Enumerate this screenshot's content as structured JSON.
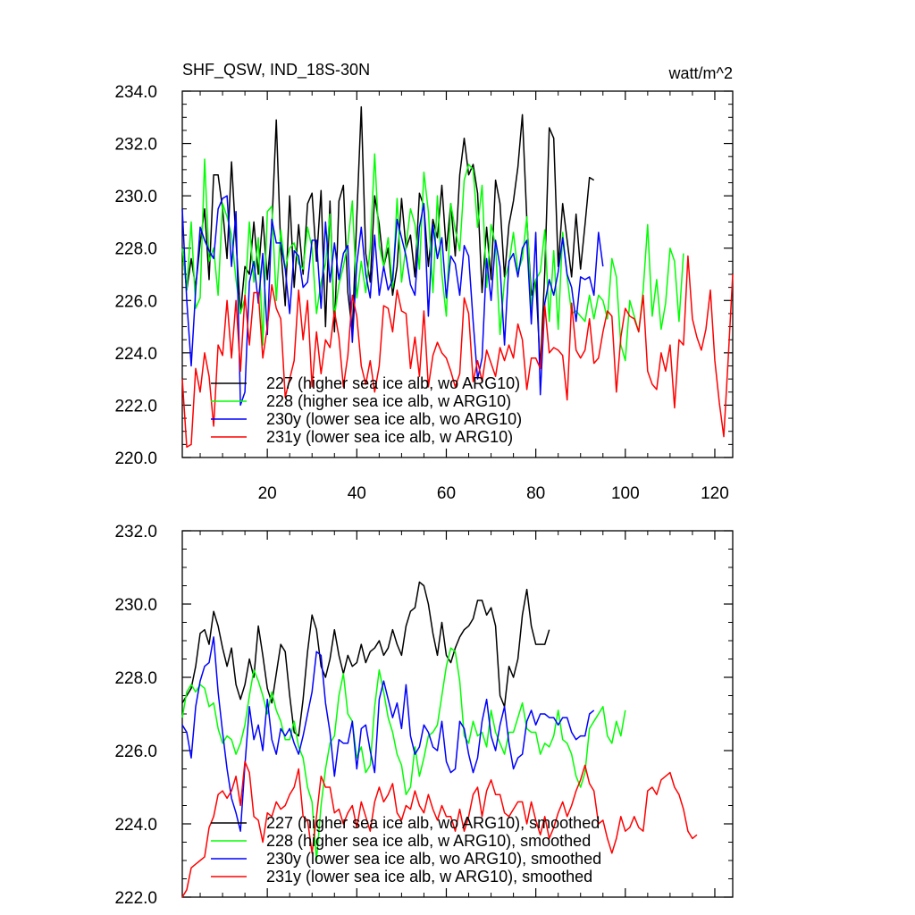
{
  "chart_data": [
    {
      "type": "line",
      "title": "SHF_QSW, IND_18S-30N",
      "units": "watt/m^2",
      "xlabel": "",
      "ylabel": "",
      "xlim": [
        1,
        124
      ],
      "ylim": [
        220,
        234
      ],
      "x_ticks": [
        20,
        40,
        60,
        80,
        100,
        120
      ],
      "y_ticks": [
        "220.0",
        "222.0",
        "224.0",
        "226.0",
        "228.0",
        "230.0",
        "232.0",
        "234.0"
      ],
      "legend_placement": "lower-left",
      "series": [
        {
          "name": "227 (higher sea ice alb, wo ARG10)",
          "color": "#000000",
          "values": [
            228.0,
            226.4,
            227.6,
            226.5,
            228.2,
            229.5,
            226.8,
            230.8,
            230.8,
            229.5,
            227.6,
            231.3,
            228.3,
            225.5,
            227.3,
            227.0,
            229.0,
            227.0,
            229.2,
            226.8,
            228.8,
            232.9,
            228.0,
            225.8,
            230.0,
            226.5,
            228.9,
            227.0,
            229.7,
            230.1,
            227.5,
            230.2,
            225.0,
            229.8,
            224.8,
            229.8,
            230.4,
            226.3,
            224.8,
            229.2,
            233.4,
            227.8,
            226.7,
            230.0,
            228.9,
            227.3,
            228.0,
            226.2,
            227.3,
            229.9,
            228.0,
            228.5,
            226.9,
            230.1,
            229.6,
            227.3,
            229.1,
            228.4,
            230.4,
            227.9,
            229.7,
            227.7,
            230.8,
            232.2,
            230.8,
            231.2,
            230.1,
            226.3,
            228.8,
            226.8,
            230.6,
            229.7,
            226.9,
            228.9,
            229.8,
            231.1,
            233.1,
            229.1,
            226.2,
            226.8,
            223.4,
            227.1,
            232.6,
            232.2,
            227.3,
            229.7,
            228.3,
            226.9,
            229.3,
            227.2,
            228.9,
            230.7,
            230.6
          ]
        },
        {
          "name": "228 (higher sea ice alb, w ARG10)",
          "color": "#00ff00",
          "values": [
            228.0,
            226.4,
            229.0,
            225.7,
            226.1,
            231.4,
            227.5,
            228.0,
            226.2,
            229.7,
            229.2,
            228.5,
            226.8,
            225.5,
            226.1,
            229.0,
            226.7,
            228.4,
            224.3,
            229.4,
            229.6,
            226.0,
            228.7,
            227.2,
            228.0,
            228.2,
            227.4,
            227.2,
            228.8,
            228.0,
            225.5,
            226.7,
            227.4,
            229.3,
            225.4,
            226.6,
            227.3,
            228.2,
            229.8,
            226.1,
            227.5,
            226.3,
            228.0,
            231.6,
            228.1,
            227.3,
            228.4,
            226.5,
            229.9,
            226.7,
            228.1,
            229.5,
            228.9,
            227.2,
            230.9,
            229.4,
            226.3,
            230.0,
            227.0,
            225.4,
            229.7,
            228.7,
            227.9,
            230.6,
            231.2,
            231.0,
            228.8,
            230.4,
            226.5,
            228.9,
            228.1,
            224.7,
            226.8,
            227.4,
            228.6,
            227.1,
            227.6,
            229.2,
            225.7,
            226.8,
            227.1,
            228.7,
            225.2,
            227.9,
            224.9,
            228.6,
            226.9,
            225.5,
            225.6,
            225.4,
            225.2,
            226.2,
            225.3,
            226.2,
            226.0,
            225.3,
            227.6,
            226.9,
            224.3,
            223.7,
            226.0,
            225.4,
            224.8,
            226.4,
            228.9,
            225.4,
            226.8,
            224.9,
            225.9,
            228.0,
            227.5,
            225.2,
            227.8
          ]
        },
        {
          "name": "230y (lower sea ice alb, wo ARG10)",
          "color": "#0000ff",
          "values": [
            229.5,
            226.0,
            223.5,
            226.4,
            228.8,
            228.3,
            227.9,
            227.6,
            229.5,
            229.9,
            230.0,
            227.3,
            229.4,
            222.0,
            222.5,
            226.7,
            227.5,
            225.9,
            227.8,
            224.7,
            229.1,
            228.2,
            228.2,
            227.2,
            225.5,
            227.9,
            227.7,
            226.5,
            226.7,
            228.3,
            228.3,
            225.7,
            229.0,
            226.7,
            228.2,
            226.8,
            227.8,
            228.1,
            224.4,
            227.4,
            228.8,
            227.0,
            226.1,
            228.5,
            226.2,
            227.3,
            226.4,
            226.8,
            229.1,
            228.4,
            227.7,
            226.6,
            226.2,
            228.8,
            229.7,
            225.4,
            228.9,
            227.6,
            228.4,
            226.1,
            227.7,
            227.4,
            226.2,
            228.1,
            227.7,
            225.2,
            223.0,
            223.8,
            227.6,
            226.0,
            228.3,
            227.3,
            224.3,
            227.5,
            227.8,
            226.9,
            228.0,
            228.3,
            225.1,
            228.6,
            222.4,
            225.9,
            226.8,
            226.2,
            227.1,
            228.4,
            227.0,
            226.5,
            225.2,
            226.9,
            226.8,
            226.9,
            226.2,
            228.6,
            227.3
          ]
        },
        {
          "name": "231y (lower sea ice alb, w ARG10)",
          "color": "#ff0000",
          "values": [
            223.0,
            220.4,
            220.5,
            223.4,
            222.5,
            224.0,
            223.1,
            221.2,
            224.3,
            223.9,
            226.0,
            223.8,
            226.0,
            223.3,
            226.2,
            224.3,
            226.3,
            226.3,
            223.8,
            225.0,
            226.6,
            225.7,
            225.3,
            222.3,
            223.0,
            223.7,
            226.4,
            224.5,
            226.0,
            222.7,
            224.8,
            223.2,
            224.5,
            224.2,
            225.6,
            224.6,
            222.7,
            223.9,
            226.2,
            225.4,
            223.5,
            222.8,
            223.7,
            222.5,
            223.5,
            225.8,
            225.7,
            224.8,
            226.4,
            225.6,
            225.5,
            223.4,
            224.6,
            223.1,
            225.6,
            222.7,
            223.9,
            224.4,
            224.0,
            223.8,
            223.3,
            222.7,
            223.2,
            226.1,
            225.5,
            222.9,
            223.7,
            222.9,
            224.1,
            223.6,
            223.1,
            224.2,
            223.7,
            224.3,
            223.8,
            225.1,
            224.5,
            222.6,
            223.8,
            223.8,
            223.4,
            225.8,
            224.0,
            224.2,
            224.1,
            223.9,
            222.2,
            225.9,
            224.1,
            223.8,
            224.1,
            225.3,
            223.6,
            223.8,
            224.8,
            225.6,
            225.4,
            222.5,
            224.6,
            225.7,
            225.4,
            225.3,
            224.8,
            226.2,
            223.3,
            222.8,
            222.6,
            224.0,
            223.3,
            224.3,
            221.9,
            224.5,
            224.3,
            227.7,
            225.3,
            224.6,
            224.1,
            224.9,
            226.4,
            223.7,
            222.1,
            220.8,
            223.8,
            227.0
          ]
        }
      ]
    },
    {
      "type": "line",
      "title": "",
      "xlabel": "",
      "ylabel": "",
      "xlim": [
        1,
        124
      ],
      "ylim": [
        222,
        232
      ],
      "x_ticks": [],
      "y_ticks": [
        "222.0",
        "224.0",
        "226.0",
        "228.0",
        "230.0",
        "232.0"
      ],
      "legend_placement": "lower-left",
      "series": [
        {
          "name": "227 (higher sea ice alb, wo ARG10), smoothed",
          "color": "#000000",
          "values": [
            227.3,
            227.5,
            227.7,
            228.3,
            229.2,
            229.3,
            228.9,
            229.8,
            229.4,
            228.8,
            228.3,
            228.8,
            227.8,
            227.4,
            227.8,
            228.5,
            228.0,
            229.4,
            228.6,
            227.7,
            227.3,
            228.1,
            228.9,
            228.7,
            227.5,
            226.5,
            226.4,
            227.4,
            228.7,
            229.7,
            229.3,
            228.3,
            228.0,
            228.5,
            229.3,
            228.6,
            228.1,
            228.6,
            228.3,
            228.4,
            228.9,
            228.4,
            228.7,
            228.8,
            229.0,
            228.6,
            228.8,
            229.3,
            228.9,
            228.6,
            229.4,
            229.8,
            229.9,
            230.6,
            230.5,
            230.0,
            229.2,
            228.6,
            229.5,
            228.6,
            228.4,
            228.8,
            229.1,
            229.3,
            229.4,
            229.6,
            230.1,
            230.1,
            229.7,
            229.9,
            229.4,
            227.5,
            227.2,
            228.3,
            228.0,
            228.5,
            229.7,
            230.4,
            229.4,
            228.9,
            228.9,
            228.9,
            229.3
          ]
        },
        {
          "name": "228 (higher sea ice alb, w ARG10), smoothed",
          "color": "#00ff00",
          "values": [
            226.9,
            227.6,
            227.8,
            227.6,
            227.8,
            227.7,
            227.2,
            227.3,
            226.6,
            226.2,
            226.4,
            226.3,
            225.9,
            226.2,
            226.7,
            227.5,
            228.2,
            227.9,
            227.5,
            227.0,
            227.6,
            227.1,
            226.8,
            226.3,
            226.3,
            226.8,
            226.1,
            225.8,
            225.0,
            224.6,
            223.0,
            224.5,
            225.5,
            226.2,
            226.4,
            227.5,
            228.1,
            227.0,
            226.8,
            225.8,
            226.1,
            225.4,
            225.6,
            227.2,
            228.2,
            227.6,
            226.9,
            226.5,
            225.9,
            225.6,
            224.8,
            225.0,
            226.1,
            225.3,
            225.8,
            226.4,
            226.5,
            226.7,
            227.5,
            228.3,
            228.8,
            228.7,
            227.9,
            226.4,
            226.2,
            226.8,
            226.4,
            226.5,
            226.1,
            227.1,
            226.5,
            226.2,
            225.9,
            226.5,
            226.5,
            226.9,
            227.3,
            226.6,
            226.5,
            226.5,
            225.9,
            226.2,
            226.1,
            226.4,
            227.1,
            226.3,
            226.2,
            225.9,
            225.3,
            225.0,
            225.4,
            226.6,
            226.8,
            227.0,
            227.2,
            226.4,
            226.2,
            226.8,
            226.4,
            227.1
          ]
        },
        {
          "name": "230y (lower sea ice alb, wo ARG10), smoothed",
          "color": "#0000ff",
          "values": [
            226.7,
            226.5,
            225.8,
            227.2,
            227.9,
            228.3,
            228.4,
            229.1,
            227.6,
            226.5,
            225.5,
            224.7,
            224.3,
            223.8,
            225.6,
            227.2,
            226.3,
            226.7,
            226.0,
            227.4,
            226.3,
            225.9,
            226.6,
            226.4,
            226.6,
            226.2,
            225.9,
            226.4,
            227.0,
            227.6,
            228.7,
            228.6,
            227.3,
            226.5,
            225.3,
            226.3,
            226.2,
            226.2,
            226.8,
            225.5,
            226.6,
            226.7,
            226.0,
            225.4,
            227.4,
            227.9,
            227.4,
            226.9,
            227.3,
            226.6,
            227.8,
            226.4,
            225.9,
            226.1,
            226.7,
            226.5,
            226.1,
            226.0,
            226.8,
            225.7,
            225.4,
            225.5,
            226.8,
            226.6,
            225.9,
            225.4,
            225.8,
            226.8,
            227.4,
            226.4,
            226.0,
            226.7,
            227.2,
            226.2,
            225.5,
            225.8,
            225.9,
            226.8,
            227.1,
            226.7,
            227.0,
            227.0,
            226.9,
            226.9,
            226.7,
            226.9,
            226.9,
            226.5,
            226.3,
            226.4,
            226.4,
            227.0,
            227.1
          ]
        },
        {
          "name": "231y (lower sea ice alb, w ARG10), smoothed",
          "color": "#ff0000",
          "values": [
            222.0,
            222.2,
            222.8,
            222.9,
            223.0,
            223.1,
            223.9,
            224.2,
            224.8,
            224.9,
            224.7,
            224.9,
            225.3,
            224.5,
            225.7,
            225.4,
            224.2,
            224.1,
            223.5,
            224.3,
            224.2,
            224.6,
            224.4,
            224.5,
            224.8,
            225.0,
            225.5,
            224.2,
            224.1,
            223.2,
            224.2,
            225.3,
            225.0,
            225.0,
            224.3,
            224.4,
            224.0,
            224.3,
            224.5,
            223.9,
            224.6,
            224.2,
            223.8,
            224.6,
            225.0,
            224.6,
            224.8,
            225.1,
            224.3,
            224.1,
            224.5,
            224.4,
            224.9,
            224.5,
            224.3,
            224.8,
            224.4,
            224.1,
            224.5,
            224.2,
            224.2,
            223.8,
            224.4,
            223.8,
            224.2,
            224.8,
            225.0,
            224.2,
            224.9,
            225.2,
            224.8,
            224.8,
            224.3,
            224.2,
            224.4,
            224.6,
            224.6,
            224.0,
            224.6,
            224.1,
            223.7,
            224.2,
            223.6,
            223.9,
            224.3,
            224.6,
            224.2,
            224.5,
            224.9,
            225.2,
            225.6,
            225.1,
            224.9,
            224.0,
            224.1,
            223.6,
            223.2,
            223.6,
            224.2,
            223.8,
            223.9,
            224.2,
            223.9,
            223.8,
            224.9,
            225.0,
            224.8,
            225.2,
            225.3,
            225.4,
            225.0,
            224.8,
            224.4,
            223.8,
            223.6,
            223.7
          ]
        }
      ]
    }
  ]
}
